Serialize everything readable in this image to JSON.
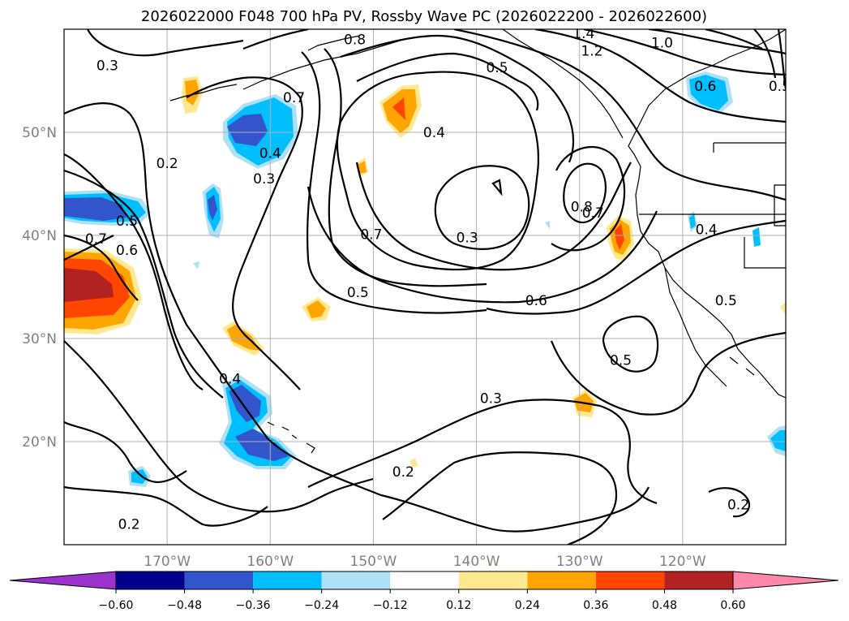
{
  "title": "2026022000 F048 700 hPa PV, Rossby Wave PC (2026022200 - 2026022600)",
  "map": {
    "lon_range": [
      -180,
      -110
    ],
    "lat_range": [
      10,
      60
    ],
    "lat_ticks": [
      {
        "value": 20,
        "label": "20°N"
      },
      {
        "value": 30,
        "label": "30°N"
      },
      {
        "value": 40,
        "label": "40°N"
      },
      {
        "value": 50,
        "label": "50°N"
      }
    ],
    "lon_ticks": [
      {
        "value": -170,
        "label": "170°W"
      },
      {
        "value": -160,
        "label": "160°W"
      },
      {
        "value": -150,
        "label": "150°W"
      },
      {
        "value": -140,
        "label": "140°W"
      },
      {
        "value": -130,
        "label": "130°W"
      },
      {
        "value": -120,
        "label": "120°W"
      }
    ],
    "contour_labels": [
      {
        "text": "0.3",
        "lon": -175.8,
        "lat": 56.5
      },
      {
        "text": "0.2",
        "lon": -170.0,
        "lat": 47.0
      },
      {
        "text": "0.4",
        "lon": -160.0,
        "lat": 48.0
      },
      {
        "text": "0.3",
        "lon": -160.6,
        "lat": 45.5
      },
      {
        "text": "0.7",
        "lon": -157.7,
        "lat": 53.4
      },
      {
        "text": "0.8",
        "lon": -151.8,
        "lat": 59.0
      },
      {
        "text": "0.5",
        "lon": -173.9,
        "lat": 41.4
      },
      {
        "text": "0.7",
        "lon": -176.9,
        "lat": 39.7
      },
      {
        "text": "0.6",
        "lon": -173.9,
        "lat": 38.6
      },
      {
        "text": "0.7",
        "lon": -150.2,
        "lat": 40.1
      },
      {
        "text": "0.5",
        "lon": -151.5,
        "lat": 34.5
      },
      {
        "text": "0.4",
        "lon": -144.1,
        "lat": 50.0
      },
      {
        "text": "0.3",
        "lon": -140.9,
        "lat": 39.8
      },
      {
        "text": "0.5",
        "lon": -138.0,
        "lat": 56.3
      },
      {
        "text": "0.6",
        "lon": -134.2,
        "lat": 33.7
      },
      {
        "text": "0.8",
        "lon": -129.8,
        "lat": 42.8
      },
      {
        "text": "0.7",
        "lon": -128.7,
        "lat": 42.2
      },
      {
        "text": "1.4",
        "lon": -129.6,
        "lat": 59.6
      },
      {
        "text": "1.2",
        "lon": -128.8,
        "lat": 57.9
      },
      {
        "text": "1.0",
        "lon": -122.0,
        "lat": 58.7
      },
      {
        "text": "0.6",
        "lon": -117.8,
        "lat": 54.5
      },
      {
        "text": "0.5",
        "lon": -110.6,
        "lat": 54.5
      },
      {
        "text": "0.4",
        "lon": -117.7,
        "lat": 40.6
      },
      {
        "text": "0.5",
        "lon": -115.8,
        "lat": 33.7
      },
      {
        "text": "0.5",
        "lon": -126.0,
        "lat": 27.9
      },
      {
        "text": "0.4",
        "lon": -163.9,
        "lat": 26.1
      },
      {
        "text": "0.3",
        "lon": -138.6,
        "lat": 24.2
      },
      {
        "text": "0.2",
        "lon": -147.1,
        "lat": 17.1
      },
      {
        "text": "0.2",
        "lon": -114.6,
        "lat": 13.9
      },
      {
        "text": "0.2",
        "lon": -173.7,
        "lat": 12.0
      }
    ]
  },
  "colorbar": {
    "tick_labels": [
      "−0.60",
      "−0.48",
      "−0.36",
      "−0.24",
      "−0.12",
      "0.12",
      "0.24",
      "0.36",
      "0.48",
      "0.60"
    ],
    "colors": [
      "#9933cc",
      "#00008b",
      "#3355cc",
      "#00bfff",
      "#aee0f8",
      "#ffffff",
      "#ffe890",
      "#ffa500",
      "#ff4500",
      "#b22222",
      "#ff88aa"
    ]
  },
  "colors": {
    "strong_positive": "#ff4500",
    "positive": "#ffa500",
    "weak_positive": "#ffe890",
    "deep_positive": "#b22222",
    "strong_negative": "#3355cc",
    "negative": "#00bfff",
    "weak_negative": "#aee0f8"
  }
}
